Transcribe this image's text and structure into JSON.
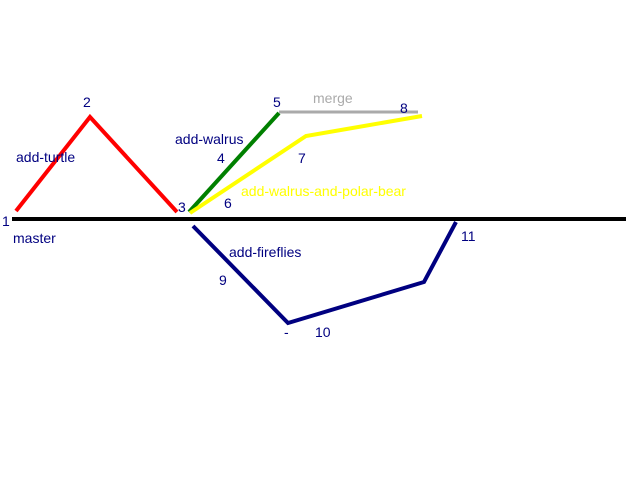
{
  "colors": {
    "master": "#000000",
    "add_turtle": "#ff0000",
    "add_walrus": "#008000",
    "add_walrus_and_polar_bear": "#ffff00",
    "add_fireflies": "#000080",
    "merge": "#aaaaaa",
    "text": "#000080"
  },
  "branches": {
    "master": "master",
    "add_turtle": "add-turtle",
    "add_walrus": "add-walrus",
    "add_walrus_and_polar_bear": "add-walrus-and-polar-bear",
    "add_fireflies": "add-fireflies",
    "merge": "merge"
  },
  "nodes": {
    "n1": "1",
    "n2": "2",
    "n3": "3",
    "n4": "4",
    "n5": "5",
    "n6": "6",
    "n7": "7",
    "n8": "8",
    "n9": "9",
    "n10": "10",
    "n11": "11"
  },
  "marks": {
    "dash": "-"
  }
}
